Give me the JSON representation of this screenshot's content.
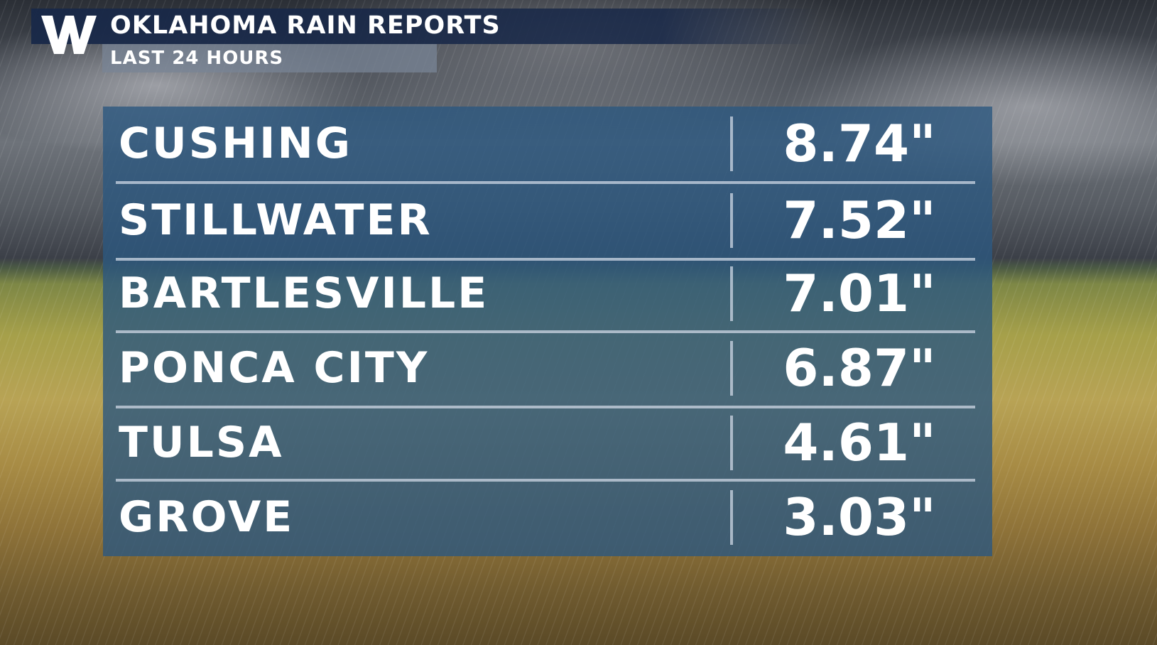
{
  "header": {
    "title": "OKLAHOMA RAIN REPORTS",
    "subtitle": "LAST 24 HOURS",
    "logo_text": "W"
  },
  "colors": {
    "header_bar": "#18284a",
    "panel": "#2c5880",
    "text": "#ffffff"
  },
  "chart_data": {
    "type": "table",
    "title": "OKLAHOMA RAIN REPORTS",
    "subtitle": "LAST 24 HOURS",
    "rows": [
      {
        "city": "CUSHING",
        "value": "8.74\""
      },
      {
        "city": "STILLWATER",
        "value": "7.52\""
      },
      {
        "city": "BARTLESVILLE",
        "value": "7.01\""
      },
      {
        "city": "PONCA CITY",
        "value": "6.87\""
      },
      {
        "city": "TULSA",
        "value": "4.61\""
      },
      {
        "city": "GROVE",
        "value": "3.03\""
      }
    ]
  }
}
